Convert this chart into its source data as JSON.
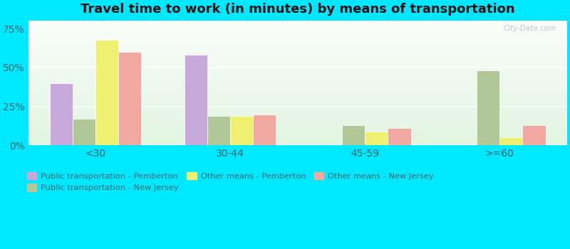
{
  "title": "Travel time to work (in minutes) by means of transportation",
  "categories": [
    "<30",
    "30-44",
    "45-59",
    ">=60"
  ],
  "series_order": [
    "Public transportation - Pemberton",
    "Public transportation - New Jersey",
    "Other means - Pemberton",
    "Other means - New Jersey"
  ],
  "series": {
    "Public transportation - Pemberton": [
      40,
      58,
      0,
      0
    ],
    "Public transportation - New Jersey": [
      17,
      19,
      13,
      48
    ],
    "Other means - Pemberton": [
      68,
      19,
      9,
      5
    ],
    "Other means - New Jersey": [
      60,
      20,
      11,
      13
    ]
  },
  "colors": {
    "Public transportation - Pemberton": "#c8a8d8",
    "Public transportation - New Jersey": "#b0c898",
    "Other means - Pemberton": "#f0f070",
    "Other means - New Jersey": "#f0a8a0"
  },
  "legend_order": [
    "Public transportation - Pemberton",
    "Public transportation - New Jersey",
    "Other means - Pemberton",
    "Other means - New Jersey"
  ],
  "ylim": [
    0,
    80
  ],
  "yticks": [
    0,
    25,
    50,
    75
  ],
  "ytick_labels": [
    "0%",
    "25%",
    "50%",
    "75%"
  ],
  "outer_background": "#00e8ff",
  "plot_bg_top": "#e8f5e0",
  "plot_bg_bottom": "#f5fff5",
  "title_fontsize": 13,
  "bar_width": 0.17,
  "watermark_text": "City-Data.com"
}
